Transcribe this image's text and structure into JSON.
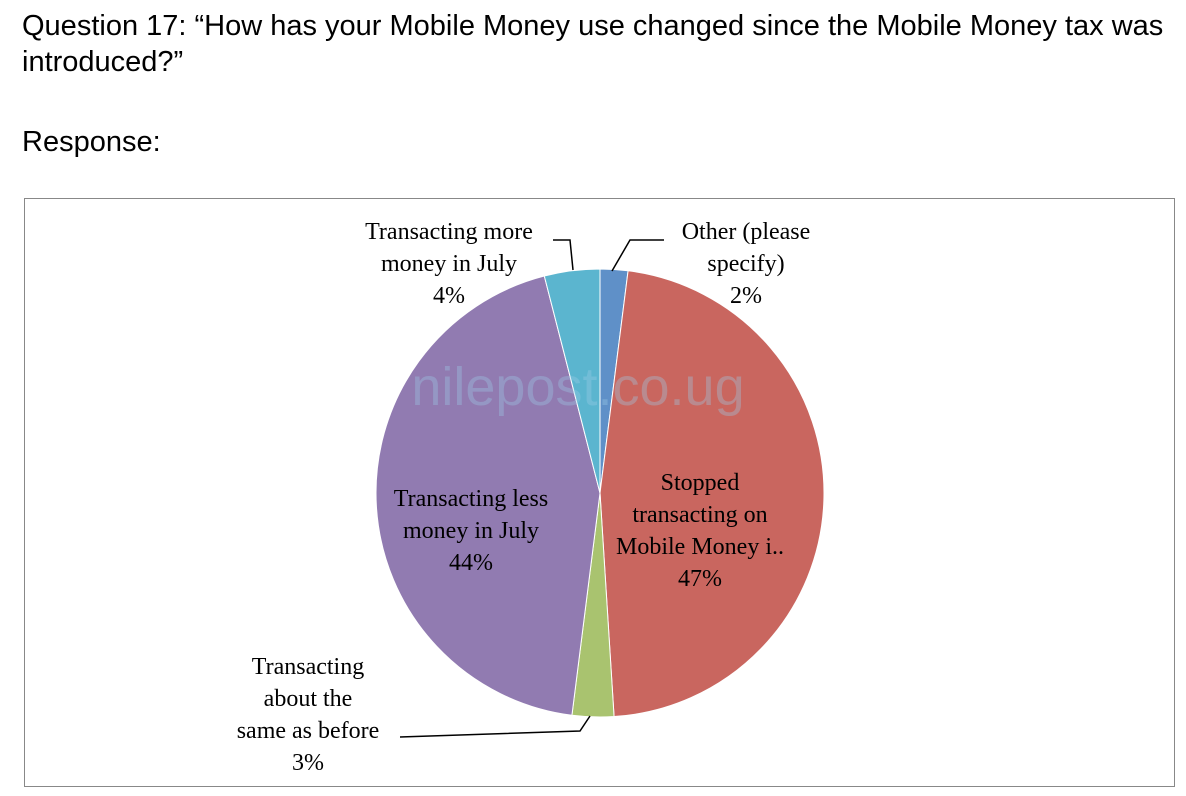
{
  "question": "Question 17: “How has your Mobile Money use changed since the Mobile Money tax was introduced?”",
  "response_heading": "Response:",
  "watermark": "nilepost.co.ug",
  "chart_data": {
    "type": "pie",
    "categories": [
      "Other (please specify)",
      "Stopped transacting on Mobile Money i..",
      "Transacting about the same as before",
      "Transacting less money in July",
      "Transacting more money in July"
    ],
    "values": [
      2,
      47,
      3,
      44,
      4
    ],
    "value_labels": [
      "2%",
      "47%",
      "3%",
      "44%",
      "4%"
    ],
    "colors": [
      "#5f90c8",
      "#c9665f",
      "#a9c36f",
      "#917bb1",
      "#5bb5cf"
    ]
  }
}
